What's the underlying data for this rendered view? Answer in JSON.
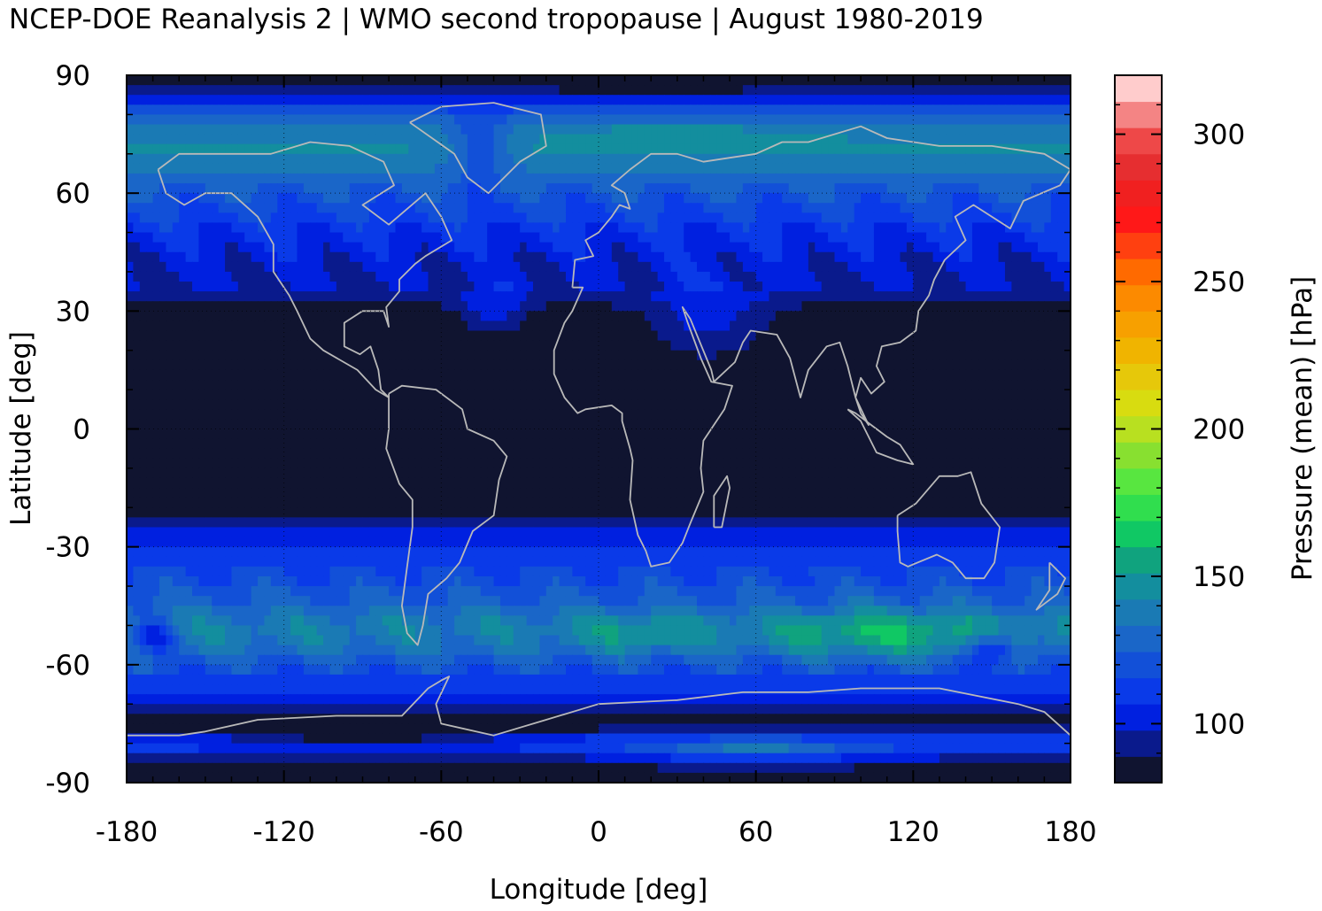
{
  "chart_data": {
    "type": "heatmap",
    "title": "NCEP-DOE Reanalysis 2 | WMO second tropopause | August 1980-2019",
    "xlabel": "Longitude [deg]",
    "ylabel": "Latitude [deg]",
    "colorbar_label": "Pressure (mean) [hPa]",
    "xlim": [
      -180,
      180
    ],
    "ylim": [
      -90,
      90
    ],
    "x_ticks": [
      -180,
      -120,
      -60,
      0,
      60,
      120,
      180
    ],
    "x_tick_labels": [
      "-180",
      "-120",
      "-60",
      "0",
      "60",
      "120",
      "180"
    ],
    "y_ticks": [
      90,
      60,
      30,
      0,
      -30,
      -60,
      -90
    ],
    "y_tick_labels": [
      "90",
      "60",
      "30",
      "0",
      "-30",
      "-60",
      "-90"
    ],
    "colorbar_range": [
      80,
      320
    ],
    "colorbar_ticks": [
      100,
      150,
      200,
      250,
      300
    ],
    "colorbar_tick_labels": [
      "100",
      "150",
      "200",
      "250",
      "300"
    ],
    "colorbar_colors": [
      "#101430",
      "#0a1a8c",
      "#0020e0",
      "#0a3ae8",
      "#1250d8",
      "#1a66c8",
      "#1a7ab4",
      "#138e9e",
      "#10a37e",
      "#10c864",
      "#30de4e",
      "#58e640",
      "#88e030",
      "#b8e020",
      "#d8dc10",
      "#e6c80a",
      "#f0b400",
      "#f7a000",
      "#fc8a00",
      "#ff6a00",
      "#ff4010",
      "#ff1818",
      "#f02020",
      "#e62e30",
      "#ee4848",
      "#f48484",
      "#ffcccc"
    ],
    "grid": true,
    "zonal_mean_profile_hPa": [
      {
        "lat": 90,
        "value": 82
      },
      {
        "lat": 85,
        "value": 95
      },
      {
        "lat": 80,
        "value": 125
      },
      {
        "lat": 75,
        "value": 140
      },
      {
        "lat": 70,
        "value": 143
      },
      {
        "lat": 65,
        "value": 132
      },
      {
        "lat": 60,
        "value": 122
      },
      {
        "lat": 55,
        "value": 115
      },
      {
        "lat": 50,
        "value": 108
      },
      {
        "lat": 45,
        "value": 102
      },
      {
        "lat": 40,
        "value": 99
      },
      {
        "lat": 35,
        "value": 96
      },
      {
        "lat": 30,
        "value": 85
      },
      {
        "lat": 25,
        "value": 82
      },
      {
        "lat": 0,
        "value": 80
      },
      {
        "lat": -20,
        "value": 82
      },
      {
        "lat": -25,
        "value": 100
      },
      {
        "lat": -30,
        "value": 108
      },
      {
        "lat": -35,
        "value": 115
      },
      {
        "lat": -40,
        "value": 120
      },
      {
        "lat": -45,
        "value": 128
      },
      {
        "lat": -50,
        "value": 140
      },
      {
        "lat": -55,
        "value": 136
      },
      {
        "lat": -60,
        "value": 122
      },
      {
        "lat": -65,
        "value": 112
      },
      {
        "lat": -70,
        "value": 100
      },
      {
        "lat": -75,
        "value": 82
      },
      {
        "lat": -80,
        "value": 118
      },
      {
        "lat": -85,
        "value": 90
      },
      {
        "lat": -90,
        "value": 80
      }
    ]
  }
}
